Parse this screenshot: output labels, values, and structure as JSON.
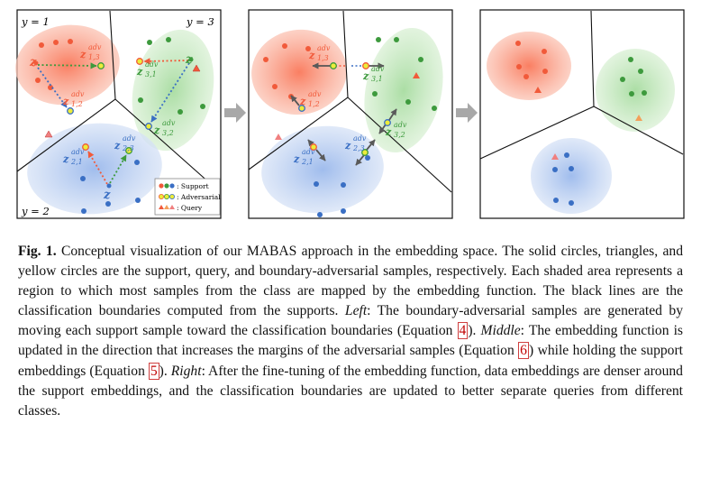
{
  "figure": {
    "left_panel": {
      "class_labels": [
        "y = 1",
        "y = 3",
        "y = 2"
      ],
      "z_labels": [
        "z",
        "z",
        "z"
      ],
      "adv_labels": [
        {
          "main": "z",
          "sub": "1,3",
          "sup": "adv"
        },
        {
          "main": "z",
          "sub": "1,2",
          "sup": "adv"
        },
        {
          "main": "z",
          "sub": "3,1",
          "sup": "adv"
        },
        {
          "main": "z",
          "sub": "3,2",
          "sup": "adv"
        },
        {
          "main": "z",
          "sub": "2,1",
          "sup": "adv"
        },
        {
          "main": "z",
          "sub": "2,3",
          "sup": "adv"
        }
      ],
      "legend": [
        {
          "label": ": Support"
        },
        {
          "label": ": Adversarial"
        },
        {
          "label": ": Query"
        }
      ]
    },
    "middle_panel": {
      "adv_labels": [
        {
          "main": "z",
          "sub": "1,3",
          "sup": "adv"
        },
        {
          "main": "z",
          "sub": "3,1",
          "sup": "adv"
        },
        {
          "main": "z",
          "sub": "1,2",
          "sup": "adv"
        },
        {
          "main": "z",
          "sub": "3,2",
          "sup": "adv"
        },
        {
          "main": "z",
          "sub": "2,1",
          "sup": "adv"
        },
        {
          "main": "z",
          "sub": "2,3",
          "sup": "adv"
        }
      ]
    },
    "colors": {
      "red": "#f15a3a",
      "green": "#3d9a3d",
      "blue": "#3a6fc4",
      "yellow": "#ecec3a",
      "arrow": "#808080"
    }
  },
  "caption": {
    "label": "Fig. 1.",
    "p1": " Conceptual visualization of our MABAS approach in the embedding space. The solid circles, triangles, and yellow circles are the support, query, and boundary-adversarial samples, respectively. Each shaded area represents a region to which most samples from the class are mapped by the embedding function. The black lines are the classification boundaries computed from the supports. ",
    "left": "Left",
    "p2": ": The boundary-adversarial samples are generated by moving each support sample toward the classification boundaries (Equation ",
    "ref4": "4",
    "p3": "). ",
    "middle": "Middle",
    "p4": ": The embedding function is updated in the direction that increases the margins of the adversarial samples (Equation ",
    "ref6": "6",
    "p5": ") while holding the support embeddings (Equation ",
    "ref5": "5",
    "p6": "). ",
    "right": "Right",
    "p7": ": After the fine-tuning of the embedding function, data embeddings are denser around the support embeddings, and the classification boundaries are updated to better separate queries from different classes."
  }
}
